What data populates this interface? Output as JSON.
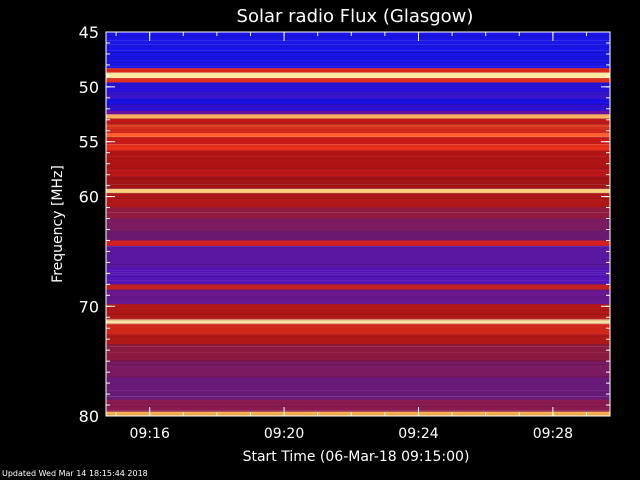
{
  "chart_data": {
    "type": "heatmap",
    "title": "Solar radio Flux (Glasgow)",
    "xlabel": "Start Time (06-Mar-18 09:15:00)",
    "ylabel": "Frequency [MHz]",
    "ylim": [
      45,
      80
    ],
    "y_reversed": true,
    "xlim_minutes_after_0915": [
      -0.3,
      14.7
    ],
    "x_ticks": [
      {
        "label": "09:16",
        "minute": 1
      },
      {
        "label": "09:20",
        "minute": 5
      },
      {
        "label": "09:24",
        "minute": 9
      },
      {
        "label": "09:28",
        "minute": 13
      }
    ],
    "y_ticks": [
      45,
      50,
      55,
      60,
      70,
      80
    ],
    "colormap": "blue-red-yellow (low to high intensity)",
    "frequency_bands": [
      {
        "from": 45.0,
        "to": 48.3,
        "color": "#1a14e6"
      },
      {
        "from": 48.3,
        "to": 48.7,
        "color": "#d8281e"
      },
      {
        "from": 48.7,
        "to": 49.2,
        "color": "#ffe8a0"
      },
      {
        "from": 49.2,
        "to": 49.6,
        "color": "#e03020"
      },
      {
        "from": 49.6,
        "to": 50.5,
        "color": "#2612d8"
      },
      {
        "from": 50.5,
        "to": 51.1,
        "color": "#3a14cc"
      },
      {
        "from": 51.1,
        "to": 51.6,
        "color": "#1a10e0"
      },
      {
        "from": 51.6,
        "to": 52.2,
        "color": "#3010d4"
      },
      {
        "from": 52.2,
        "to": 52.5,
        "color": "#6a10a0"
      },
      {
        "from": 52.5,
        "to": 52.9,
        "color": "#ffb060"
      },
      {
        "from": 52.9,
        "to": 53.4,
        "color": "#c01818"
      },
      {
        "from": 53.4,
        "to": 53.7,
        "color": "#e04020"
      },
      {
        "from": 53.7,
        "to": 54.2,
        "color": "#d02818"
      },
      {
        "from": 54.2,
        "to": 54.6,
        "color": "#ff6030"
      },
      {
        "from": 54.6,
        "to": 55.2,
        "color": "#c81a14"
      },
      {
        "from": 55.2,
        "to": 55.8,
        "color": "#e8301c"
      },
      {
        "from": 55.8,
        "to": 57.5,
        "color": "#b01414"
      },
      {
        "from": 57.5,
        "to": 58.2,
        "color": "#c01818"
      },
      {
        "from": 58.2,
        "to": 59.3,
        "color": "#a01414"
      },
      {
        "from": 59.3,
        "to": 59.7,
        "color": "#ffd080"
      },
      {
        "from": 59.7,
        "to": 61.0,
        "color": "#b01818"
      },
      {
        "from": 61.0,
        "to": 62.0,
        "color": "#901a40"
      },
      {
        "from": 62.0,
        "to": 63.2,
        "color": "#7a1a60"
      },
      {
        "from": 63.2,
        "to": 64.0,
        "color": "#6a1870"
      },
      {
        "from": 64.0,
        "to": 64.5,
        "color": "#d02020"
      },
      {
        "from": 64.5,
        "to": 66.5,
        "color": "#5a18a0"
      },
      {
        "from": 66.5,
        "to": 68.0,
        "color": "#5214b4"
      },
      {
        "from": 68.0,
        "to": 68.5,
        "color": "#c02020"
      },
      {
        "from": 68.5,
        "to": 69.8,
        "color": "#6a1890"
      },
      {
        "from": 69.8,
        "to": 71.2,
        "color": "#b01818"
      },
      {
        "from": 71.2,
        "to": 71.6,
        "color": "#ffe0a0"
      },
      {
        "from": 71.6,
        "to": 72.6,
        "color": "#d02818"
      },
      {
        "from": 72.6,
        "to": 73.5,
        "color": "#b01818"
      },
      {
        "from": 73.5,
        "to": 75.0,
        "color": "#8a1a40"
      },
      {
        "from": 75.0,
        "to": 76.5,
        "color": "#7a1a60"
      },
      {
        "from": 76.5,
        "to": 78.5,
        "color": "#681a78"
      },
      {
        "from": 78.5,
        "to": 79.6,
        "color": "#8a1a50"
      },
      {
        "from": 79.6,
        "to": 80.0,
        "color": "#ffb050"
      }
    ]
  },
  "footer": {
    "updated_text": "Updated Wed Mar 14 18:15:44 2018"
  },
  "colors": {
    "background": "#000000",
    "axis": "#ffffff"
  }
}
